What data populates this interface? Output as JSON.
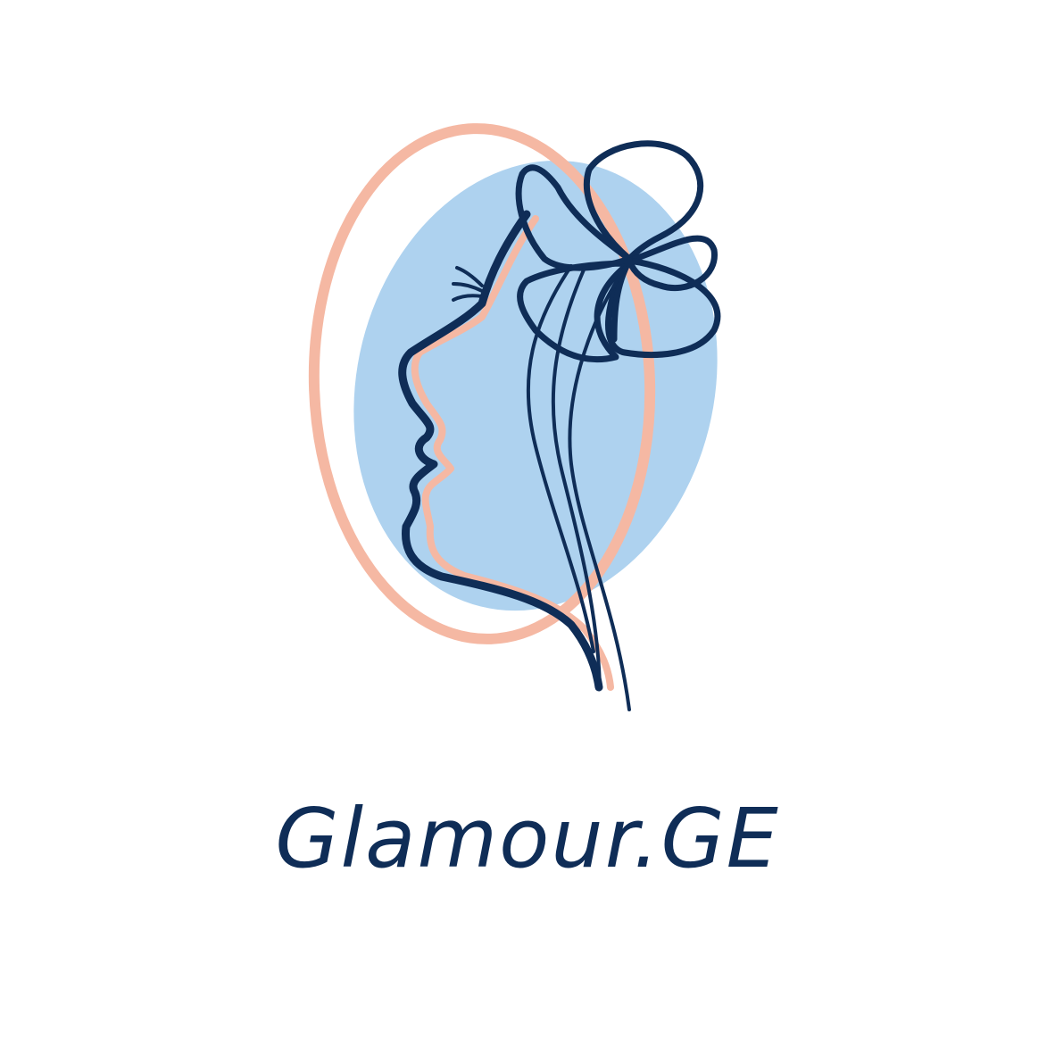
{
  "brand": {
    "wordmark": "Glamour.GE",
    "logo_icon": "woman-profile-with-flower-icon"
  },
  "colors": {
    "background": "#ffffff",
    "line_art": "#0f2d57",
    "blob_fill": "#aed2ef",
    "ring_stroke": "#f5b8a3"
  }
}
